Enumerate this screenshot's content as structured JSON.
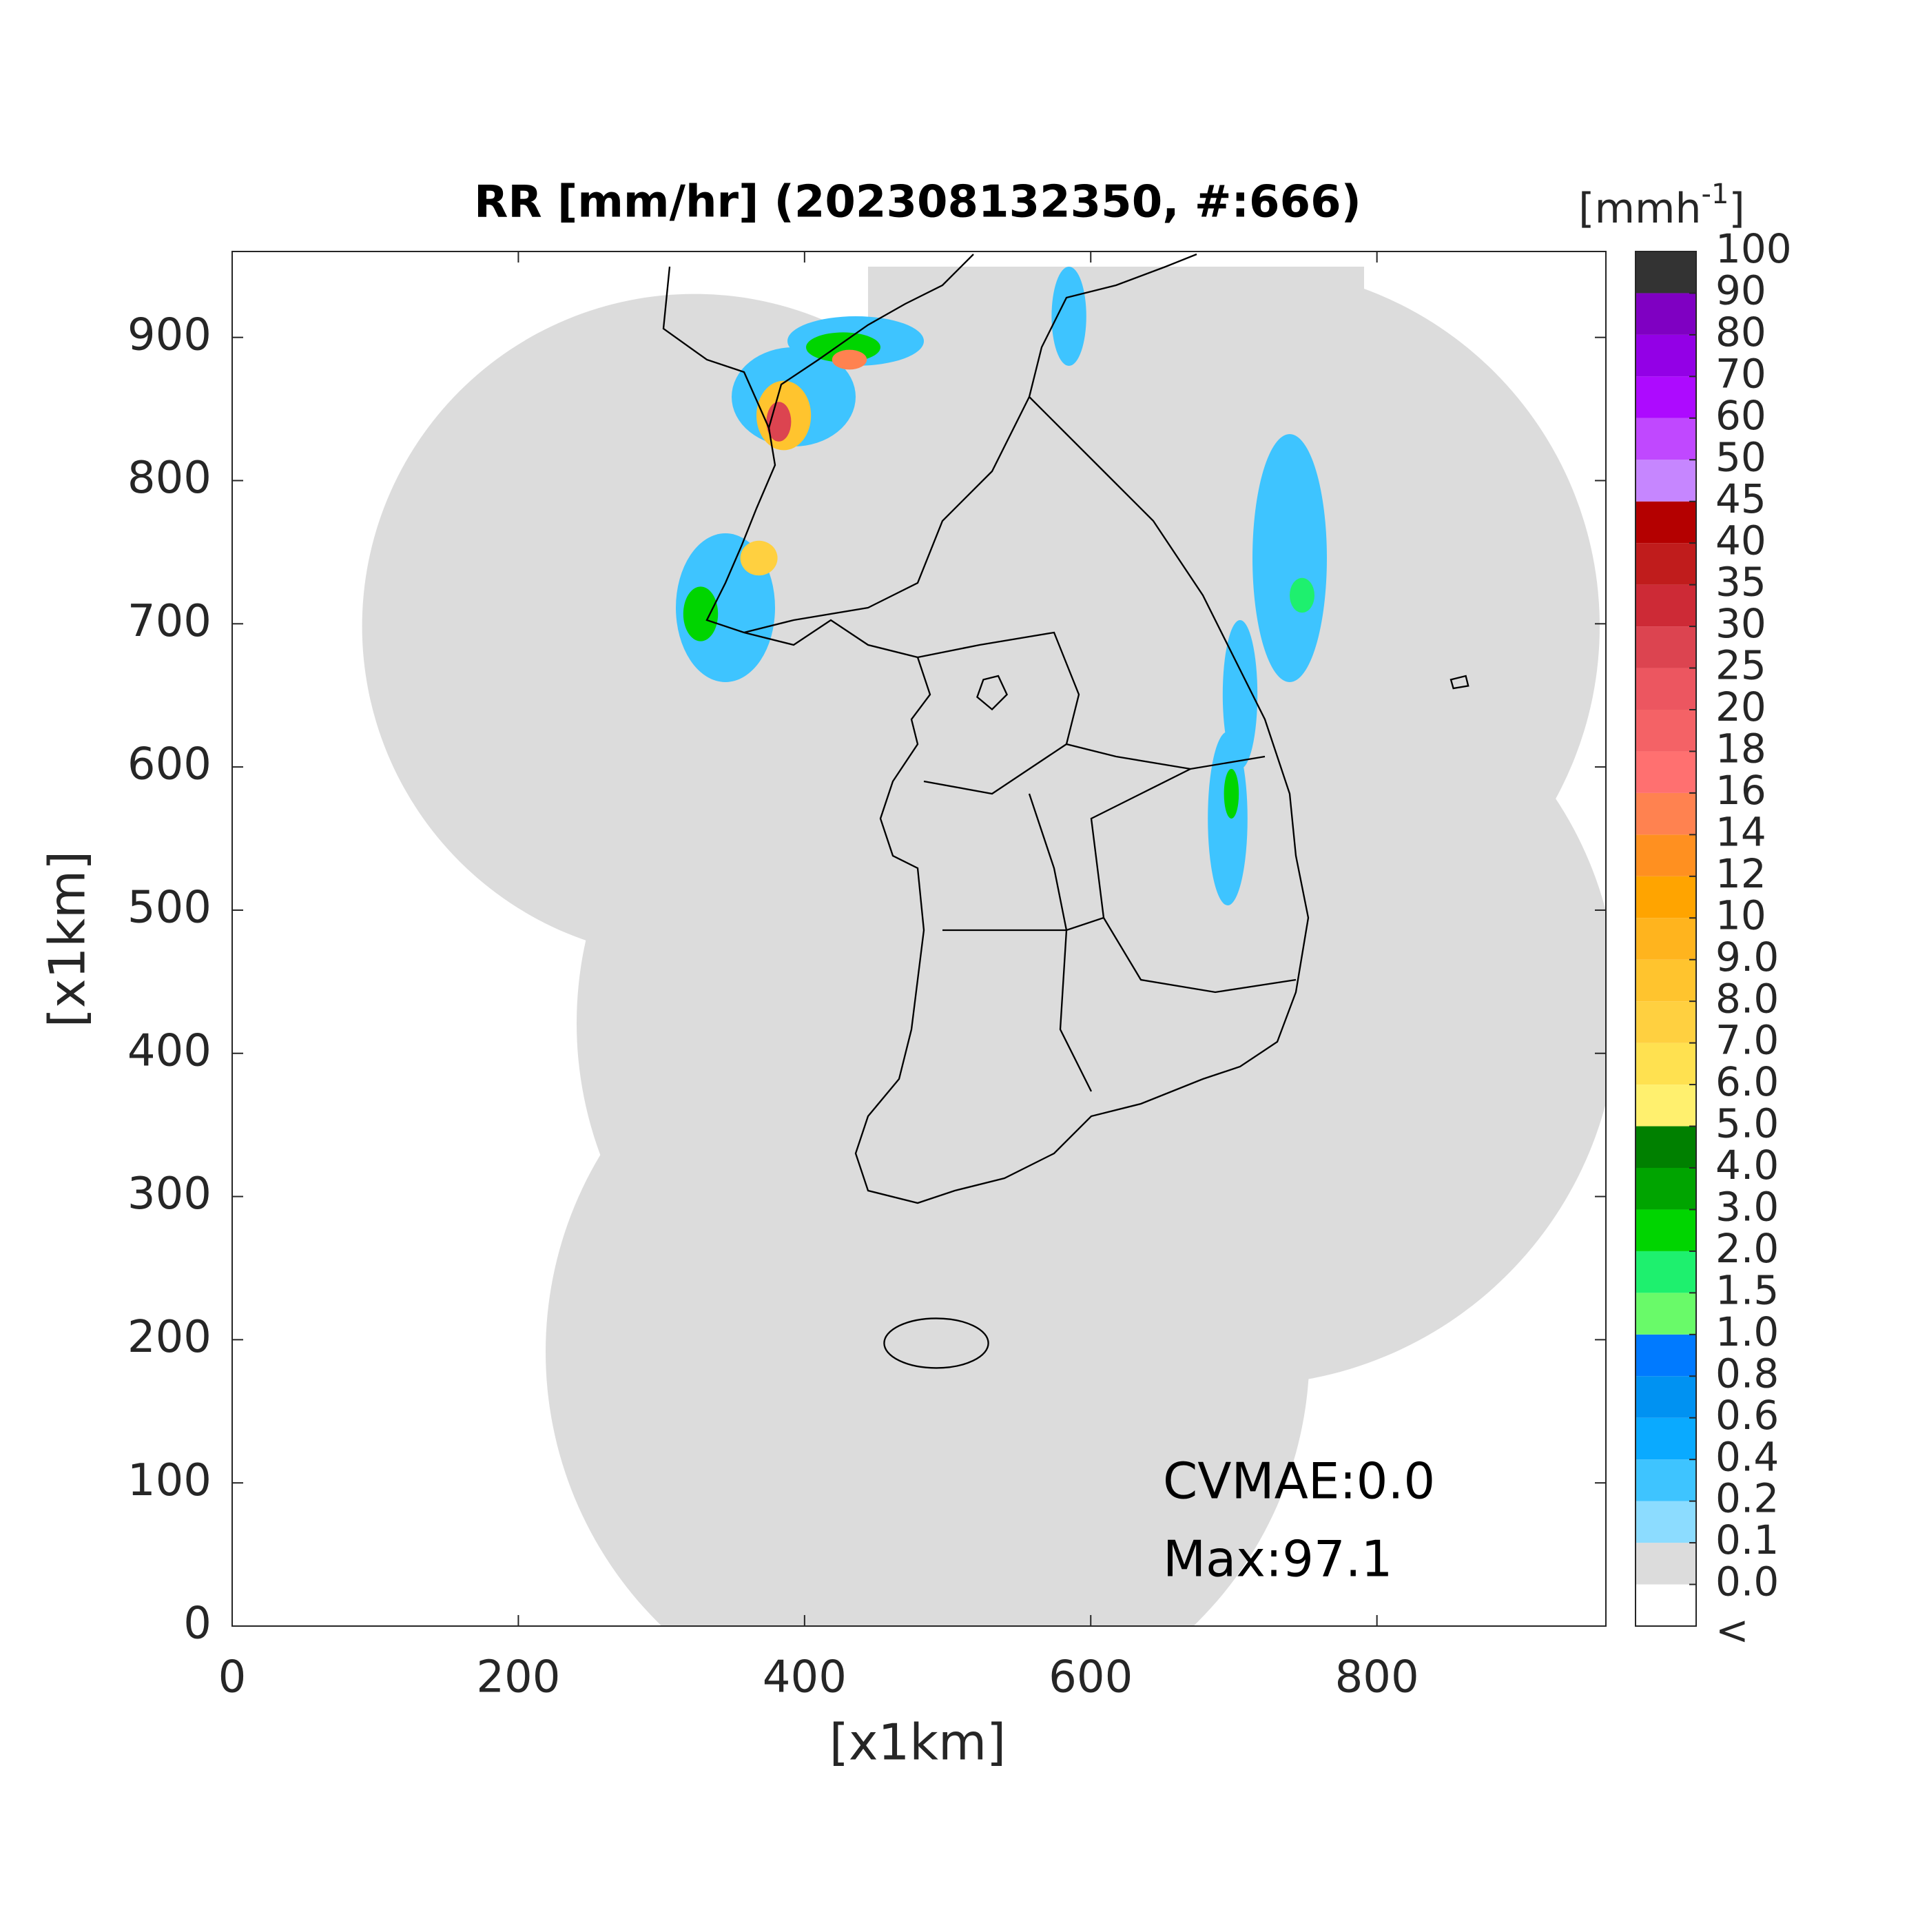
{
  "chart_data": {
    "type": "heatmap",
    "title": "RR [mm/hr] (202308132350, #:666)",
    "xlabel": "[x1km]",
    "ylabel": "[x1km]",
    "xlim": [
      0,
      960
    ],
    "ylim": [
      0,
      960
    ],
    "xticks": [
      0,
      200,
      400,
      600,
      800
    ],
    "yticks": [
      0,
      100,
      200,
      300,
      400,
      500,
      600,
      700,
      800,
      900
    ],
    "annotations": [
      "CVMAE:0.0",
      "Max:97.1"
    ],
    "colorbar": {
      "unit": "[mmh",
      "unit_exponent": "-1",
      "unit_close": "]",
      "under_label": "<",
      "under_color": "#ffffff",
      "ticks": [
        {
          "value": 0,
          "label": "0.0"
        },
        0.1,
        0.2,
        0.4,
        0.6,
        0.8,
        {
          "value": 1,
          "label": "1.0"
        },
        1.5,
        {
          "value": 2,
          "label": "2.0"
        },
        {
          "value": 3,
          "label": "3.0"
        },
        {
          "value": 4,
          "label": "4.0"
        },
        {
          "value": 5,
          "label": "5.0"
        },
        {
          "value": 6,
          "label": "6.0"
        },
        {
          "value": 7,
          "label": "7.0"
        },
        {
          "value": 8,
          "label": "8.0"
        },
        {
          "value": 9,
          "label": "9.0"
        },
        10,
        12,
        14,
        16,
        18,
        20,
        25,
        30,
        35,
        40,
        45,
        50,
        60,
        70,
        80,
        90,
        100
      ],
      "colors": [
        "#dcdcdc",
        "#8cdcff",
        "#3ec4ff",
        "#0aaaff",
        "#0092f2",
        "#007aff",
        "#69fa69",
        "#1ef06e",
        "#00d500",
        "#00a400",
        "#008000",
        "#fff06e",
        "#ffe150",
        "#ffd040",
        "#ffc42e",
        "#ffb41e",
        "#ffa400",
        "#ff9020",
        "#ff8250",
        "#ff7070",
        "#f46266",
        "#ec5660",
        "#dc4450",
        "#cd2a36",
        "#c01c1c",
        "#b40000",
        "#c686ff",
        "#c048ff",
        "#ad0aff",
        "#9300e6",
        "#7f00c2",
        "#333333"
      ]
    }
  }
}
